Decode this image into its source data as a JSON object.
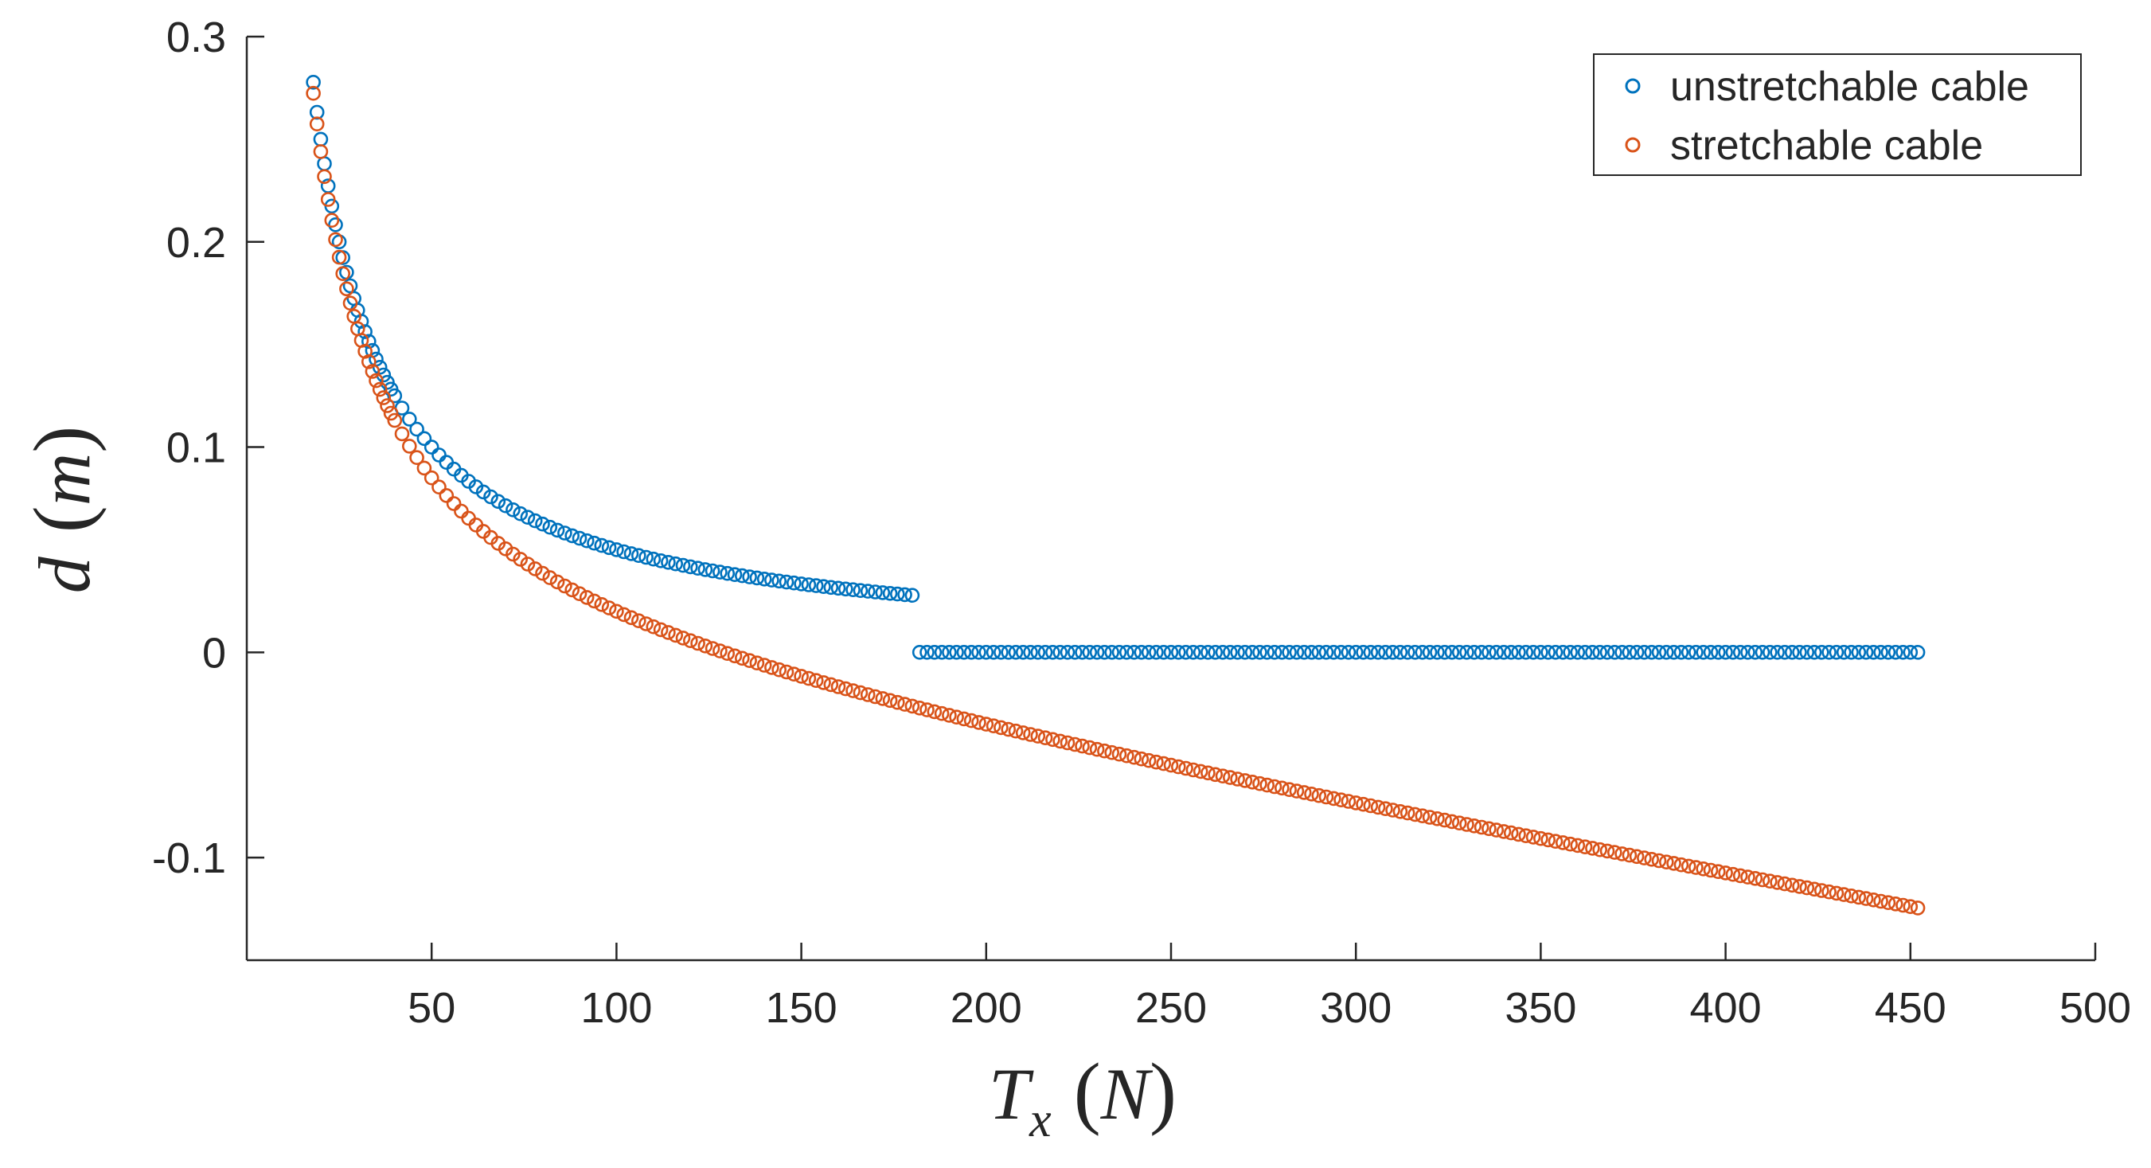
{
  "chart_data": {
    "type": "scatter",
    "title": "",
    "xlabel": {
      "main": "T",
      "subscript": "x",
      "unit": "N"
    },
    "ylabel": {
      "main": "d",
      "unit": "m"
    },
    "xlim": [
      0,
      500
    ],
    "ylim": [
      -0.15,
      0.3
    ],
    "xticks": [
      50,
      100,
      150,
      200,
      250,
      300,
      350,
      400,
      450,
      500
    ],
    "yticks": [
      0.3,
      0.2,
      0.1,
      0,
      -0.1
    ],
    "x_tick_labels": [
      "50",
      "100",
      "150",
      "200",
      "250",
      "300",
      "350",
      "400",
      "450",
      "500"
    ],
    "y_tick_labels": [
      "0.3",
      "0.2",
      "0.1",
      "0",
      "-0.1"
    ],
    "grid": false,
    "legend_position": "top-right",
    "x_range": {
      "start": 18,
      "end": 453,
      "step_fine": 1,
      "fine_until": 40,
      "step_coarse": 2
    },
    "series": [
      {
        "name": "unstretchable cable",
        "color": "#0072BD",
        "marker": "circle-open",
        "model": "d = 5.0 / T (0 for T > 180)",
        "sample_points": [
          [
            18,
            0.278
          ],
          [
            20,
            0.25
          ],
          [
            25,
            0.2
          ],
          [
            30,
            0.167
          ],
          [
            40,
            0.125
          ],
          [
            50,
            0.1
          ],
          [
            100,
            0.05
          ],
          [
            180,
            0.028
          ],
          [
            200,
            0
          ],
          [
            453,
            0
          ]
        ]
      },
      {
        "name": "stretchable cable",
        "color": "#D95319",
        "marker": "circle-open",
        "model": "d = 5.0 / T - 0.0003 * T",
        "sample_points": [
          [
            18,
            0.272
          ],
          [
            20,
            0.244
          ],
          [
            30,
            0.158
          ],
          [
            50,
            0.085
          ],
          [
            100,
            0.02
          ],
          [
            150,
            -0.012
          ],
          [
            200,
            -0.035
          ],
          [
            300,
            -0.073
          ],
          [
            400,
            -0.108
          ],
          [
            453,
            -0.125
          ]
        ]
      }
    ]
  }
}
